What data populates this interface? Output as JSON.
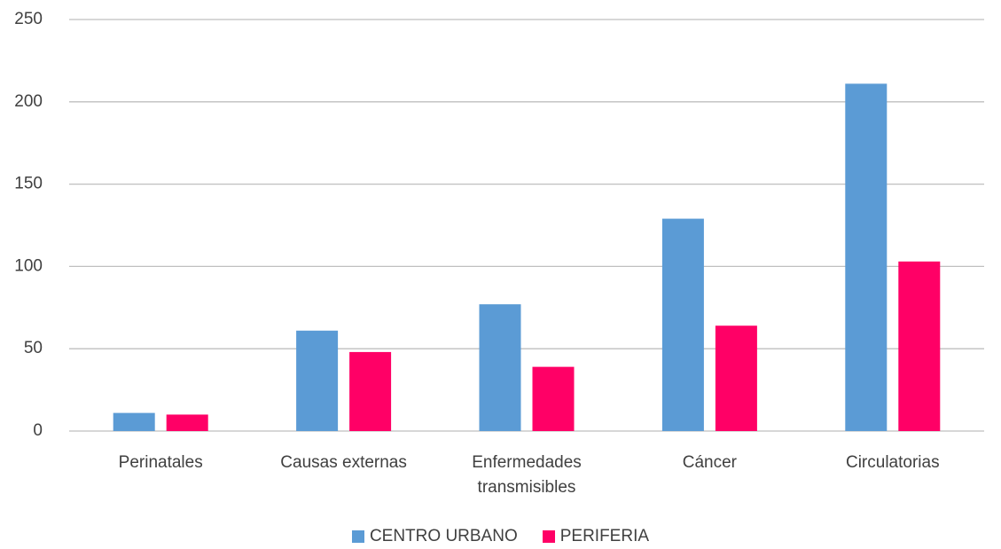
{
  "chart_data": {
    "type": "bar",
    "categories": [
      "Perinatales",
      "Causas externas",
      "Enfermedades transmisibles",
      "Cáncer",
      "Circulatorias"
    ],
    "series": [
      {
        "name": "CENTRO URBANO",
        "color": "#5b9bd5",
        "values": [
          11,
          61,
          77,
          129,
          211
        ]
      },
      {
        "name": "PERIFERIA",
        "color": "#ff0066",
        "values": [
          10,
          48,
          39,
          64,
          103
        ]
      }
    ],
    "ylim": [
      0,
      250
    ],
    "yticks": [
      0,
      50,
      100,
      150,
      200,
      250
    ],
    "grid": true,
    "legend": "bottom"
  }
}
